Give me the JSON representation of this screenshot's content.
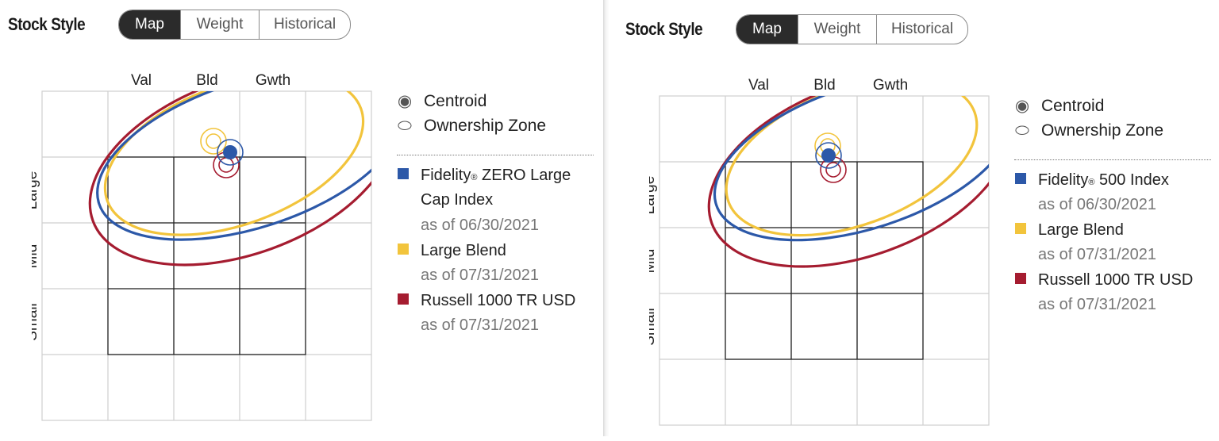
{
  "panels": [
    {
      "title": "Stock Style",
      "tabs": [
        "Map",
        "Weight",
        "Historical"
      ],
      "active_tab": "Map",
      "columns": [
        "Val",
        "Bld",
        "Gwth"
      ],
      "rows": [
        "Large",
        "Mid",
        "Small"
      ],
      "legend": {
        "centroid": "Centroid",
        "zone": "Ownership Zone"
      },
      "series": [
        {
          "name": "Fidelity",
          "mark": "®",
          "name_rest": " ZERO Large Cap Index",
          "date": "as of 06/30/2021",
          "color": "#2c58a8"
        },
        {
          "name": "Large Blend",
          "mark": "",
          "name_rest": "",
          "date": "as of 07/31/2021",
          "color": "#f2c43c"
        },
        {
          "name": "Russell 1000 TR USD",
          "mark": "",
          "name_rest": "",
          "date": "as of 07/31/2021",
          "color": "#a51c30"
        }
      ]
    },
    {
      "title": "Stock Style",
      "tabs": [
        "Map",
        "Weight",
        "Historical"
      ],
      "active_tab": "Map",
      "columns": [
        "Val",
        "Bld",
        "Gwth"
      ],
      "rows": [
        "Large",
        "Mid",
        "Small"
      ],
      "legend": {
        "centroid": "Centroid",
        "zone": "Ownership Zone"
      },
      "series": [
        {
          "name": "Fidelity",
          "mark": "®",
          "name_rest": " 500 Index",
          "date": "as of 06/30/2021",
          "color": "#2c58a8"
        },
        {
          "name": "Large Blend",
          "mark": "",
          "name_rest": "",
          "date": "as of 07/31/2021",
          "color": "#f2c43c"
        },
        {
          "name": "Russell 1000 TR USD",
          "mark": "",
          "name_rest": "",
          "date": "as of 07/31/2021",
          "color": "#a51c30"
        }
      ]
    }
  ],
  "colors": {
    "blue": "#2c58a8",
    "yellow": "#f2c43c",
    "red": "#a51c30",
    "grid": "#cfcfcf",
    "box": "#222222"
  }
}
